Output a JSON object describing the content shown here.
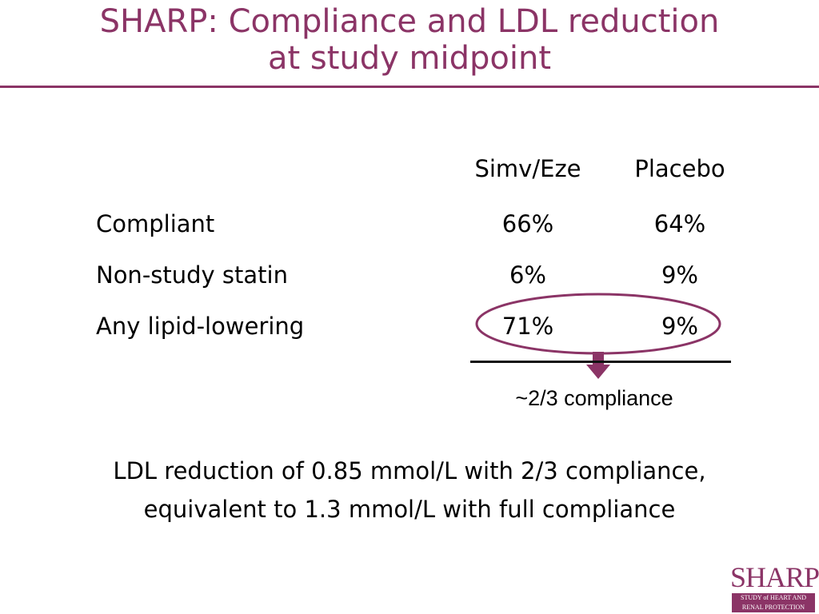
{
  "slide": {
    "title_line1": "SHARP: Compliance and LDL reduction",
    "title_line2": "at study midpoint",
    "accent_color": "#8b3466"
  },
  "table": {
    "columns": [
      "Simv/Eze",
      "Placebo"
    ],
    "rows": [
      {
        "label": "Compliant",
        "values": [
          "66%",
          "64%"
        ]
      },
      {
        "label": "Non-study statin",
        "values": [
          "6%",
          "9%"
        ]
      },
      {
        "label": "Any lipid-lowering",
        "values": [
          "71%",
          "9%"
        ]
      }
    ],
    "annotation": "~2/3 compliance"
  },
  "footer": {
    "line1": "LDL reduction of 0.85 mmol/L with 2/3 compliance,",
    "line2": "equivalent to 1.3 mmol/L with full compliance"
  },
  "logo": {
    "word": "SHARP",
    "band_line1": "STUDY of HEART AND",
    "band_line2": "RENAL PROTECTION"
  }
}
